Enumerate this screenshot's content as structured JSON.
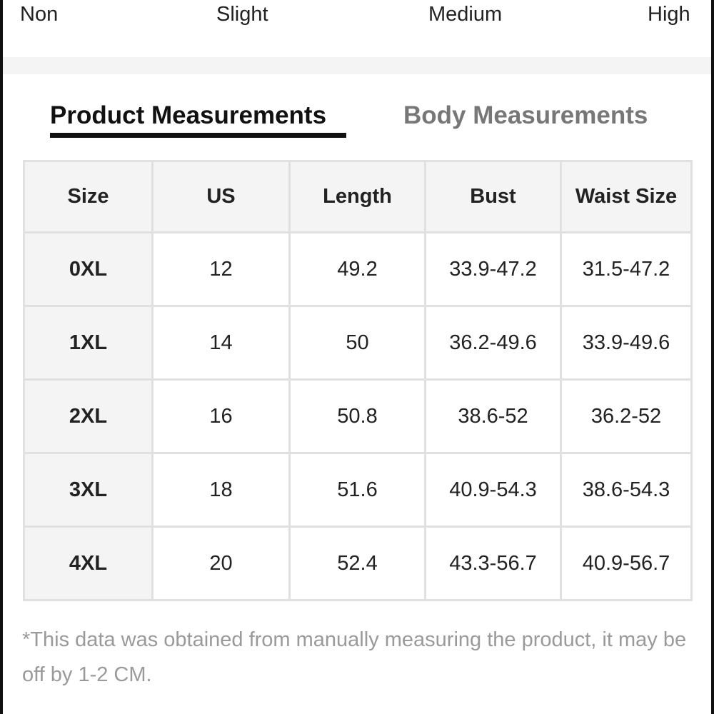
{
  "stretch_labels": [
    "Non",
    "Slight",
    "Medium",
    "High"
  ],
  "tabs": [
    "Product Measurements",
    "Body Measurements"
  ],
  "table": {
    "header": [
      "Size",
      "US",
      "Length",
      "Bust",
      "Waist Size"
    ],
    "rows": [
      [
        "0XL",
        "12",
        "49.2",
        "33.9-47.2",
        "31.5-47.2"
      ],
      [
        "1XL",
        "14",
        "50",
        "36.2-49.6",
        "33.9-49.6"
      ],
      [
        "2XL",
        "16",
        "50.8",
        "38.6-52",
        "36.2-52"
      ],
      [
        "3XL",
        "18",
        "51.6",
        "40.9-54.3",
        "38.6-54.3"
      ],
      [
        "4XL",
        "20",
        "52.4",
        "43.3-56.7",
        "40.9-56.7"
      ]
    ]
  },
  "note": "*This data was obtained from manually measuring the product, it may be off by 1-2 CM."
}
